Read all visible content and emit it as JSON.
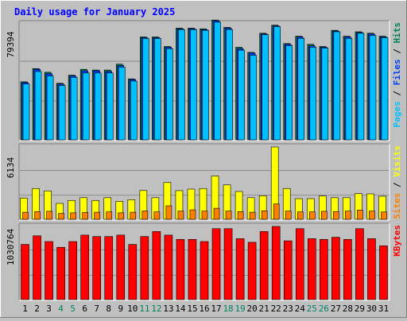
{
  "title": "Daily usage for January 2025",
  "colors": {
    "background": "#c0c0c0",
    "title": "#0000ff",
    "hits": "#00805c",
    "files": "#0040ff",
    "pages": "#00c0ff",
    "visits": "#ffff00",
    "sites": "#ff8000",
    "kbytes": "#ff0000",
    "weekend_label": "#00805c",
    "weekday_label": "#000000"
  },
  "chart_data": [
    {
      "type": "bar",
      "panel": "hits-files-pages",
      "legend": [
        {
          "key": "pages",
          "label": "Pages"
        },
        {
          "key": "files",
          "label": "Files"
        },
        {
          "key": "hits",
          "label": "Hits"
        }
      ],
      "legend_separator": " / ",
      "y_label": "79394",
      "ylim": [
        0,
        79394
      ],
      "categories": [
        "1",
        "2",
        "3",
        "4",
        "5",
        "6",
        "7",
        "8",
        "9",
        "10",
        "11",
        "12",
        "13",
        "14",
        "15",
        "16",
        "17",
        "18",
        "19",
        "20",
        "21",
        "22",
        "23",
        "24",
        "25",
        "26",
        "27",
        "28",
        "29",
        "30",
        "31"
      ],
      "weekend_days": [
        "4",
        "5",
        "11",
        "12",
        "18",
        "19",
        "25",
        "26"
      ],
      "series": [
        {
          "key": "hits",
          "values": [
            40000,
            49000,
            46500,
            39000,
            44500,
            48500,
            48000,
            48000,
            52000,
            42000,
            70500,
            70500,
            64000,
            76500,
            76500,
            76000,
            82000,
            77000,
            63500,
            60000,
            73000,
            78500,
            66000,
            71000,
            65500,
            64000,
            75000,
            71000,
            74000,
            73000,
            71000
          ]
        },
        {
          "key": "files",
          "values": [
            39500,
            48500,
            45500,
            38500,
            44000,
            47500,
            47500,
            47000,
            51000,
            41500,
            70000,
            70000,
            63500,
            76000,
            76000,
            75500,
            81500,
            76500,
            62500,
            59500,
            72500,
            78000,
            65500,
            70500,
            64500,
            63500,
            74500,
            70500,
            73500,
            72500,
            70500
          ]
        },
        {
          "key": "pages",
          "values": [
            38500,
            47000,
            44000,
            37500,
            43000,
            46000,
            46000,
            46000,
            50000,
            40500,
            69500,
            69500,
            62500,
            75500,
            75500,
            75000,
            80500,
            75500,
            61500,
            58000,
            72000,
            77500,
            64500,
            69500,
            63500,
            63000,
            74000,
            69500,
            73000,
            71500,
            70000
          ]
        }
      ]
    },
    {
      "type": "bar",
      "panel": "visits-sites",
      "legend": [
        {
          "key": "sites",
          "label": "Sites"
        },
        {
          "key": "visits",
          "label": "Visits"
        }
      ],
      "legend_separator": " / ",
      "y_label": "6134",
      "ylim": [
        0,
        6134
      ],
      "series": [
        {
          "key": "visits",
          "values": [
            1850,
            2650,
            2450,
            1400,
            1650,
            1880,
            1650,
            1880,
            1580,
            1710,
            2480,
            1880,
            3150,
            2470,
            2600,
            2650,
            3700,
            2950,
            2400,
            1880,
            2040,
            6134,
            2650,
            1800,
            1800,
            2020,
            1880,
            1880,
            2220,
            2200,
            2000
          ]
        },
        {
          "key": "sites",
          "values": [
            660,
            710,
            740,
            560,
            610,
            650,
            660,
            690,
            610,
            660,
            770,
            690,
            1200,
            760,
            860,
            760,
            990,
            760,
            710,
            660,
            780,
            1350,
            760,
            690,
            690,
            740,
            710,
            760,
            840,
            760,
            680
          ]
        }
      ]
    },
    {
      "type": "bar",
      "panel": "kbytes",
      "legend": [
        {
          "key": "kbytes",
          "label": "KBytes"
        }
      ],
      "y_label": "1030764",
      "ylim": [
        0,
        1030764
      ],
      "series": [
        {
          "key": "kbytes",
          "values": [
            780000,
            900000,
            820000,
            740000,
            820000,
            910000,
            890000,
            890000,
            910000,
            780000,
            890000,
            960000,
            910000,
            850000,
            850000,
            820000,
            1000000,
            1000000,
            860000,
            810000,
            960000,
            1030764,
            830000,
            1000000,
            860000,
            850000,
            880000,
            850000,
            1000000,
            860000,
            760000
          ]
        }
      ]
    }
  ]
}
